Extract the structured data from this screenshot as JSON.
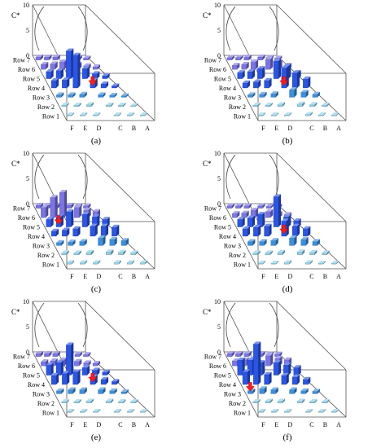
{
  "chart_data": [
    {
      "type": "bar",
      "panel": "(a)",
      "ylabel": "C*",
      "zlim": [
        0,
        10
      ],
      "z_ticks": [
        "10",
        "5",
        "0"
      ],
      "rows": [
        "Row 7",
        "Row 6",
        "Row 5",
        "Row 4",
        "Row 3",
        "Row 2",
        "Row 1"
      ],
      "columns": [
        "F",
        "E",
        "D",
        "C",
        "B",
        "A"
      ],
      "values": [
        [
          0.6,
          0.6,
          0.6,
          0.5,
          0.5,
          0.4
        ],
        [
          1.0,
          1.1,
          1.5,
          1.0,
          0.7,
          0.5
        ],
        [
          1.4,
          1.6,
          5.5,
          2.0,
          1.0,
          0.6
        ],
        [
          1.5,
          1.6,
          6.5,
          1.5,
          0.8,
          0.4
        ],
        [
          0.5,
          0.5,
          0.6,
          0.5,
          0.4,
          0.3
        ],
        [
          0.3,
          0.3,
          0.4,
          0.3,
          0.3,
          0.2
        ],
        [
          0.2,
          0.2,
          0.2,
          0.2,
          0.2,
          0.2
        ]
      ],
      "source": {
        "row": "Row 4",
        "column": "C"
      }
    },
    {
      "type": "bar",
      "panel": "(b)",
      "ylabel": "C*",
      "zlim": [
        0,
        10
      ],
      "z_ticks": [
        "10",
        "5",
        "0"
      ],
      "rows": [
        "Row 7",
        "Row 6",
        "Row 5",
        "Row 4",
        "Row 3",
        "Row 2",
        "Row 1"
      ],
      "columns": [
        "F",
        "E",
        "D",
        "C",
        "B",
        "A"
      ],
      "values": [
        [
          0.5,
          0.5,
          0.6,
          0.6,
          0.5,
          0.4
        ],
        [
          0.8,
          1.0,
          1.5,
          2.0,
          1.5,
          0.8
        ],
        [
          1.2,
          1.4,
          2.0,
          3.5,
          2.5,
          1.2
        ],
        [
          1.0,
          1.2,
          1.5,
          4.0,
          3.0,
          1.8
        ],
        [
          0.5,
          0.6,
          0.7,
          1.5,
          1.0,
          0.6
        ],
        [
          0.3,
          0.3,
          0.4,
          0.5,
          0.4,
          0.3
        ],
        [
          0.2,
          0.2,
          0.2,
          0.3,
          0.2,
          0.2
        ]
      ],
      "source": {
        "row": "Row 4",
        "column": "C"
      }
    },
    {
      "type": "bar",
      "panel": "(c)",
      "ylabel": "C*",
      "zlim": [
        0,
        10
      ],
      "z_ticks": [
        "10",
        "5",
        "0"
      ],
      "rows": [
        "Row 7",
        "Row 6",
        "Row 5",
        "Row 4",
        "Row 3",
        "Row 2",
        "Row 1"
      ],
      "columns": [
        "F",
        "E",
        "D",
        "C",
        "B",
        "A"
      ],
      "values": [
        [
          0.6,
          0.6,
          0.6,
          0.6,
          0.5,
          0.5
        ],
        [
          2.0,
          4.0,
          5.0,
          2.0,
          1.5,
          1.2
        ],
        [
          1.5,
          2.0,
          3.0,
          2.5,
          2.0,
          1.5
        ],
        [
          1.0,
          1.2,
          1.5,
          2.0,
          2.0,
          1.8
        ],
        [
          0.6,
          0.7,
          0.8,
          1.5,
          1.2,
          1.0
        ],
        [
          0.4,
          0.4,
          0.5,
          0.6,
          0.5,
          0.4
        ],
        [
          0.3,
          0.3,
          0.3,
          0.3,
          0.3,
          0.3
        ]
      ],
      "source": {
        "row": "Row 5",
        "column": "E"
      }
    },
    {
      "type": "bar",
      "panel": "(d)",
      "ylabel": "C*",
      "zlim": [
        0,
        10
      ],
      "z_ticks": [
        "10",
        "5",
        "0"
      ],
      "rows": [
        "Row 7",
        "Row 6",
        "Row 5",
        "Row 4",
        "Row 3",
        "Row 2",
        "Row 1"
      ],
      "columns": [
        "F",
        "E",
        "D",
        "C",
        "B",
        "A"
      ],
      "values": [
        [
          0.5,
          0.5,
          0.5,
          0.5,
          0.4,
          0.4
        ],
        [
          0.8,
          0.9,
          1.5,
          1.2,
          0.8,
          0.6
        ],
        [
          1.5,
          1.8,
          2.5,
          6.0,
          2.0,
          1.2
        ],
        [
          1.5,
          1.8,
          2.0,
          3.0,
          2.0,
          1.5
        ],
        [
          0.8,
          0.8,
          1.0,
          1.5,
          1.2,
          0.8
        ],
        [
          0.4,
          0.4,
          0.5,
          0.6,
          0.5,
          0.4
        ],
        [
          0.2,
          0.2,
          0.3,
          0.3,
          0.2,
          0.2
        ]
      ],
      "source": {
        "row": "Row 4",
        "column": "C"
      }
    },
    {
      "type": "bar",
      "panel": "(e)",
      "ylabel": "C*",
      "zlim": [
        0,
        10
      ],
      "z_ticks": [
        "10",
        "5",
        "0"
      ],
      "rows": [
        "Row 7",
        "Row 6",
        "Row 5",
        "Row 4",
        "Row 3",
        "Row 2",
        "Row 1"
      ],
      "columns": [
        "F",
        "E",
        "D",
        "C",
        "B",
        "A"
      ],
      "values": [
        [
          0.6,
          0.6,
          0.6,
          0.5,
          0.5,
          0.4
        ],
        [
          0.8,
          1.0,
          1.2,
          0.9,
          0.6,
          0.5
        ],
        [
          2.0,
          2.5,
          6.0,
          1.5,
          1.0,
          0.6
        ],
        [
          1.8,
          2.2,
          2.5,
          1.5,
          1.0,
          0.6
        ],
        [
          0.6,
          0.8,
          0.8,
          0.8,
          0.6,
          0.4
        ],
        [
          0.3,
          0.3,
          0.4,
          0.4,
          0.3,
          0.3
        ],
        [
          0.2,
          0.2,
          0.2,
          0.2,
          0.2,
          0.2
        ]
      ],
      "source": {
        "row": "Row 4",
        "column": "C"
      }
    },
    {
      "type": "bar",
      "panel": "(f)",
      "ylabel": "C*",
      "zlim": [
        0,
        10
      ],
      "z_ticks": [
        "10",
        "5",
        "0"
      ],
      "rows": [
        "Row 7",
        "Row 6",
        "Row 5",
        "Row 4",
        "Row 3",
        "Row 2",
        "Row 1"
      ],
      "columns": [
        "F",
        "E",
        "D",
        "C",
        "B",
        "A"
      ],
      "values": [
        [
          0.6,
          0.6,
          0.6,
          0.6,
          0.5,
          0.5
        ],
        [
          1.0,
          1.2,
          1.5,
          2.0,
          1.5,
          1.2
        ],
        [
          3.0,
          3.0,
          2.5,
          2.5,
          2.0,
          1.5
        ],
        [
          2.5,
          8.0,
          2.0,
          1.8,
          1.5,
          1.0
        ],
        [
          0.6,
          1.0,
          0.8,
          0.8,
          0.6,
          0.5
        ],
        [
          0.3,
          0.4,
          0.4,
          0.4,
          0.3,
          0.3
        ],
        [
          0.2,
          0.2,
          0.2,
          0.2,
          0.2,
          0.2
        ]
      ],
      "source": {
        "row": "Row 3",
        "column": "F"
      }
    }
  ],
  "colors": {
    "far_row": "#7b74e6",
    "mid_row": "#2a55e8",
    "near_row": "#3a8fe0",
    "front_row": "#8fd0e8",
    "source_arrow": "#ff1a1a",
    "frame": "#555555"
  }
}
